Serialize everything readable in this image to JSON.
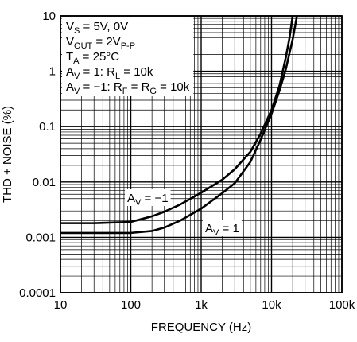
{
  "chart_data": {
    "type": "line",
    "xlabel": "FREQUENCY (Hz)",
    "ylabel": "THD + NOISE (%)",
    "x_scale": "log",
    "y_scale": "log",
    "xlim": [
      10,
      100000
    ],
    "ylim": [
      0.0001,
      10
    ],
    "grid": true,
    "x_ticks": [
      10,
      100,
      1000,
      10000,
      100000
    ],
    "x_tick_labels": [
      "10",
      "100",
      "1k",
      "10k",
      "100k"
    ],
    "y_ticks": [
      0.0001,
      0.001,
      0.01,
      0.1,
      1,
      10
    ],
    "y_tick_labels": [
      "0.0001",
      "0.001",
      "0.01",
      "0.1",
      "1",
      "10"
    ],
    "annotations": {
      "lines": [
        [
          {
            "t": "V"
          },
          {
            "t": "S",
            "sub": true
          },
          {
            "t": " = 5V, 0V"
          }
        ],
        [
          {
            "t": "V"
          },
          {
            "t": "OUT",
            "sub": true
          },
          {
            "t": " = 2V"
          },
          {
            "t": "P-P",
            "sub": true
          }
        ],
        [
          {
            "t": "T"
          },
          {
            "t": "A",
            "sub": true
          },
          {
            "t": " = 25°C"
          }
        ],
        [
          {
            "t": "A"
          },
          {
            "t": "V",
            "sub": true
          },
          {
            "t": " = 1: R"
          },
          {
            "t": "L",
            "sub": true
          },
          {
            "t": " = 10k"
          }
        ],
        [
          {
            "t": "A"
          },
          {
            "t": "V",
            "sub": true
          },
          {
            "t": " = −1: R"
          },
          {
            "t": "F",
            "sub": true
          },
          {
            "t": " = R"
          },
          {
            "t": "G",
            "sub": true
          },
          {
            "t": " = 10k"
          }
        ]
      ]
    },
    "series": [
      {
        "label": [
          {
            "t": "A"
          },
          {
            "t": "V",
            "sub": true
          },
          {
            "t": " = −1"
          }
        ],
        "x": [
          10,
          30,
          100,
          200,
          300,
          500,
          1000,
          2000,
          3000,
          5000,
          7000,
          10000,
          13000,
          16000,
          18000,
          20000
        ],
        "y": [
          0.0018,
          0.0018,
          0.0019,
          0.0024,
          0.0029,
          0.0039,
          0.0064,
          0.011,
          0.017,
          0.035,
          0.075,
          0.2,
          0.55,
          1.8,
          4,
          10
        ]
      },
      {
        "label": [
          {
            "t": "A"
          },
          {
            "t": "V",
            "sub": true
          },
          {
            "t": " = 1"
          }
        ],
        "x": [
          10,
          30,
          100,
          200,
          300,
          500,
          1000,
          2000,
          3000,
          5000,
          7000,
          10000,
          13000,
          16000,
          20000,
          23000
        ],
        "y": [
          0.0012,
          0.0012,
          0.0012,
          0.0013,
          0.0015,
          0.002,
          0.0033,
          0.0063,
          0.0095,
          0.023,
          0.058,
          0.17,
          0.45,
          1.1,
          3.8,
          10
        ]
      }
    ]
  }
}
